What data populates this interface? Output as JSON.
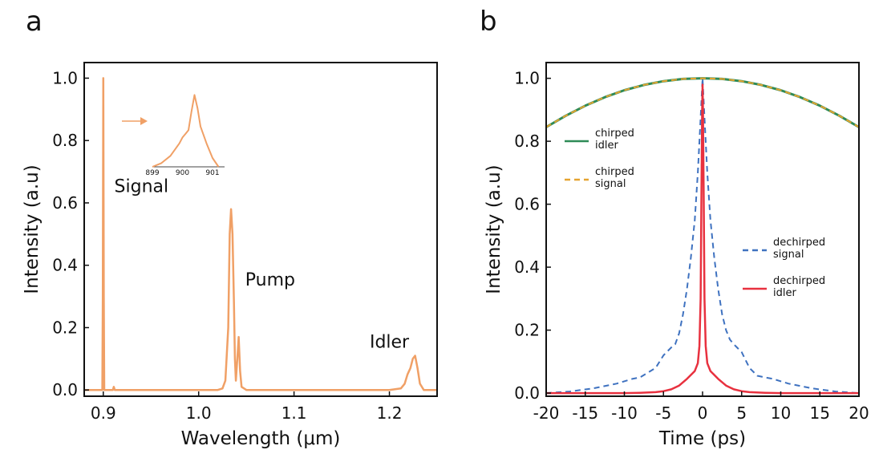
{
  "colors": {
    "spectrum": "#f0a066",
    "chirped_idler": "#2e8b57",
    "chirped_signal": "#e6a430",
    "dechirped_signal": "#3f72c0",
    "dechirped_idler": "#e8313f",
    "axis": "#111111"
  },
  "chart_data": [
    {
      "panel_label": "a",
      "type": "line",
      "xlabel": "Wavelength (μm)",
      "ylabel": "Intensity (a.u)",
      "xlim": [
        0.88,
        1.25
      ],
      "ylim": [
        -0.02,
        1.05
      ],
      "xticks": [
        0.9,
        1.0,
        1.1,
        1.2
      ],
      "xtick_labels": [
        "0.9",
        "1.0",
        "1.1",
        "1.2"
      ],
      "yticks": [
        0.0,
        0.2,
        0.4,
        0.6,
        0.8,
        1.0
      ],
      "ytick_labels": [
        "0.0",
        "0.2",
        "0.4",
        "0.6",
        "0.8",
        "1.0"
      ],
      "series": [
        {
          "x": [
            0.88,
            0.899,
            0.8995,
            0.9,
            0.9005,
            0.901,
            0.91,
            0.911,
            0.912,
            1.02,
            1.025,
            1.028,
            1.031,
            1.0325,
            1.034,
            1.0355,
            1.037,
            1.038,
            1.039,
            1.0405,
            1.042,
            1.0435,
            1.045,
            1.05,
            1.2,
            1.212,
            1.216,
            1.219,
            1.222,
            1.2245,
            1.227,
            1.2295,
            1.232,
            1.236,
            1.25
          ],
          "y": [
            0.0,
            0.0,
            0.3,
            1.0,
            0.3,
            0.0,
            0.0,
            0.01,
            0.0,
            0.0,
            0.005,
            0.03,
            0.2,
            0.5,
            0.58,
            0.5,
            0.28,
            0.1,
            0.03,
            0.1,
            0.17,
            0.06,
            0.01,
            0.0,
            0.0,
            0.005,
            0.02,
            0.05,
            0.07,
            0.1,
            0.11,
            0.07,
            0.02,
            0.0,
            0.0
          ]
        }
      ],
      "annotations": [
        {
          "text": "Signal",
          "x": 0.94,
          "y": 0.635
        },
        {
          "text": "Pump",
          "x": 1.075,
          "y": 0.335
        },
        {
          "text": "Idler",
          "x": 1.2,
          "y": 0.135
        }
      ],
      "inset": {
        "xlim": [
          899,
          901.4
        ],
        "xticks": [
          899,
          900,
          901
        ],
        "xtick_labels": [
          "899",
          "900",
          "901"
        ],
        "ylim": [
          0,
          1.05
        ],
        "x": [
          899,
          899.3,
          899.6,
          899.9,
          900.0,
          900.1,
          900.2,
          900.3,
          900.4,
          900.5,
          900.6,
          900.8,
          901.0,
          901.2
        ],
        "y": [
          0.0,
          0.05,
          0.15,
          0.32,
          0.4,
          0.45,
          0.5,
          0.75,
          0.98,
          0.8,
          0.55,
          0.32,
          0.12,
          0.0
        ]
      }
    },
    {
      "panel_label": "b",
      "type": "line",
      "xlabel": "Time (ps)",
      "ylabel": "Intensity (a.u)",
      "xlim": [
        -20,
        20
      ],
      "ylim": [
        -0.01,
        1.05
      ],
      "xticks": [
        -20,
        -15,
        -10,
        -5,
        0,
        5,
        10,
        15,
        20
      ],
      "xtick_labels": [
        "-20",
        "-15",
        "-10",
        "-5",
        "0",
        "5",
        "10",
        "15",
        "20"
      ],
      "yticks": [
        0.0,
        0.2,
        0.4,
        0.6,
        0.8,
        1.0
      ],
      "ytick_labels": [
        "0.0",
        "0.2",
        "0.4",
        "0.6",
        "0.8",
        "1.0"
      ],
      "series": [
        {
          "name": "chirped idler",
          "x": [
            -20,
            -17.5,
            -15,
            -12.5,
            -10,
            -7.5,
            -5,
            -2.5,
            0,
            2.5,
            5,
            7.5,
            10,
            12.5,
            15,
            17.5,
            20
          ],
          "y": [
            0.845,
            0.881,
            0.913,
            0.94,
            0.962,
            0.979,
            0.991,
            0.998,
            1.0,
            0.998,
            0.991,
            0.979,
            0.962,
            0.94,
            0.913,
            0.881,
            0.845
          ]
        },
        {
          "name": "chirped signal",
          "x": [
            -20,
            -17.5,
            -15,
            -12.5,
            -10,
            -7.5,
            -5,
            -2.5,
            0,
            2.5,
            5,
            7.5,
            10,
            12.5,
            15,
            17.5,
            20
          ],
          "y": [
            0.845,
            0.881,
            0.913,
            0.94,
            0.962,
            0.979,
            0.991,
            0.998,
            1.0,
            0.998,
            0.991,
            0.979,
            0.962,
            0.94,
            0.913,
            0.881,
            0.845
          ]
        },
        {
          "name": "dechirped signal",
          "x": [
            -20,
            -17,
            -14,
            -11,
            -9,
            -8,
            -6,
            -5,
            -4,
            -3.5,
            -3,
            -2.5,
            -2,
            -1.5,
            -1,
            -0.6,
            -0.3,
            0,
            0.3,
            0.6,
            1,
            1.5,
            2,
            2.5,
            3,
            3.5,
            4,
            5,
            6,
            7,
            8,
            9,
            11,
            14,
            17,
            20
          ],
          "y": [
            0.0,
            0.005,
            0.015,
            0.03,
            0.045,
            0.05,
            0.08,
            0.12,
            0.145,
            0.155,
            0.19,
            0.25,
            0.33,
            0.43,
            0.55,
            0.7,
            0.85,
            1.0,
            0.85,
            0.7,
            0.55,
            0.43,
            0.33,
            0.25,
            0.2,
            0.17,
            0.155,
            0.13,
            0.08,
            0.055,
            0.05,
            0.045,
            0.03,
            0.015,
            0.005,
            0.0
          ]
        },
        {
          "name": "dechirped idler",
          "x": [
            -20,
            -10,
            -8,
            -6,
            -5,
            -4,
            -3,
            -2,
            -1,
            -0.6,
            -0.4,
            -0.25,
            -0.15,
            -0.05,
            0,
            0.05,
            0.15,
            0.25,
            0.4,
            0.6,
            1,
            2,
            3,
            4,
            5,
            6,
            8,
            10,
            20
          ],
          "y": [
            0.0,
            0.0,
            0.001,
            0.003,
            0.006,
            0.012,
            0.024,
            0.045,
            0.07,
            0.095,
            0.15,
            0.3,
            0.6,
            0.9,
            0.98,
            0.9,
            0.6,
            0.3,
            0.15,
            0.095,
            0.07,
            0.045,
            0.024,
            0.012,
            0.006,
            0.003,
            0.001,
            0.0,
            0.0
          ]
        }
      ],
      "legends": [
        {
          "placement": "upper-left",
          "entries": [
            {
              "series": "chirped idler",
              "label_lines": [
                "chirped",
                "idler"
              ],
              "dashed": false
            },
            {
              "series": "chirped signal",
              "label_lines": [
                "chirped",
                "signal"
              ],
              "dashed": true
            }
          ]
        },
        {
          "placement": "center-right",
          "entries": [
            {
              "series": "dechirped signal",
              "label_lines": [
                "dechirped",
                "signal"
              ],
              "dashed": true
            },
            {
              "series": "dechirped idler",
              "label_lines": [
                "dechirped",
                "idler"
              ],
              "dashed": false
            }
          ]
        }
      ]
    }
  ]
}
